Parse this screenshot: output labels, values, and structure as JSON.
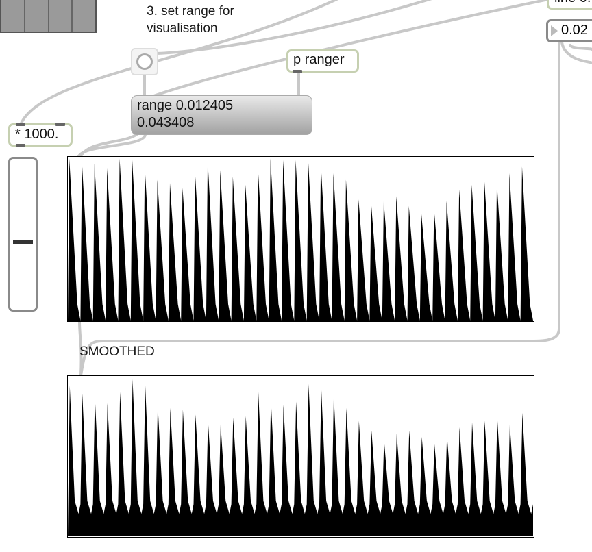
{
  "comments": {
    "step3_line1": "3. set range for",
    "step3_line2": "visualisation",
    "smoothed": "SMOOTHED"
  },
  "objects": {
    "multiply": "* 1000.",
    "p_ranger": "p ranger",
    "line_partial": "line 0.",
    "number_partial": "0.02"
  },
  "range_message": {
    "line1": "range 0.012405",
    "line2": "0.043408"
  },
  "slider": {
    "value": 0.46
  },
  "colors": {
    "object_border": "#c6d0b1",
    "patch_cord": "#c8c8c8",
    "scope_fill": "#000000"
  },
  "icons": {
    "bang": "circle-bang-icon",
    "number_arrow": "triangle-right-icon"
  }
}
